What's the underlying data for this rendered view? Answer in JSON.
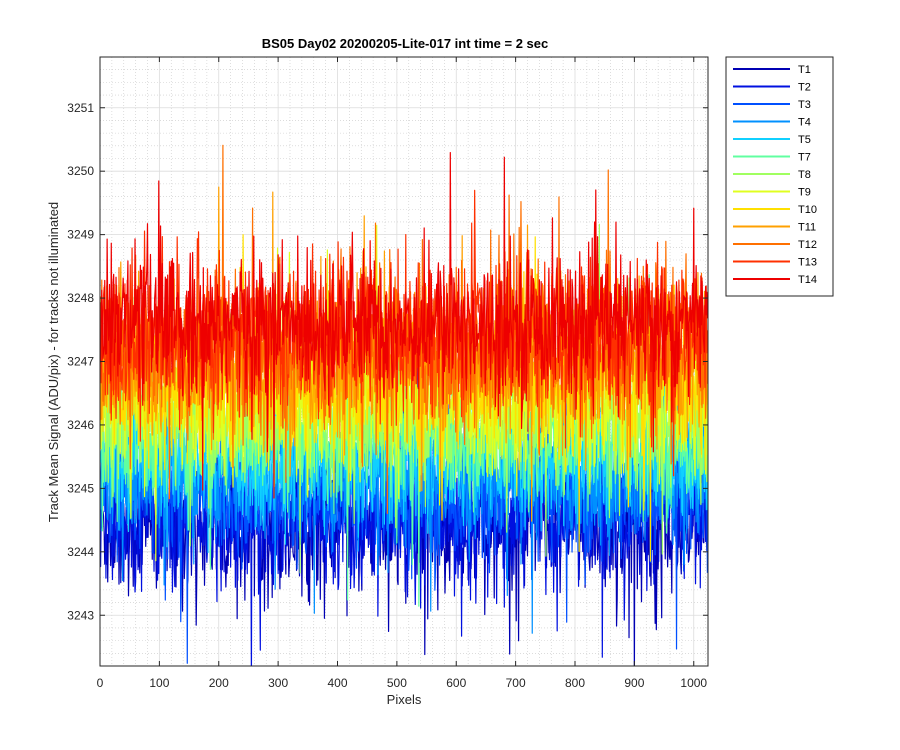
{
  "chart_data": {
    "type": "line",
    "title": "BS05 Day02 20200205-Lite-017 int time = 2 sec",
    "xlabel": "Pixels",
    "ylabel": "Track Mean Signal (ADU/pix) - for tracks not illuminated",
    "xlim": [
      0,
      1024
    ],
    "ylim": [
      3242.2,
      3251.8
    ],
    "xticks": [
      0,
      100,
      200,
      300,
      400,
      500,
      600,
      700,
      800,
      900,
      1000
    ],
    "yticks": [
      3243,
      3244,
      3245,
      3246,
      3247,
      3248,
      3249,
      3250,
      3251
    ],
    "grid": true,
    "minor_grid": true,
    "legend_position": "outside-top-right",
    "x_points": 1024,
    "series": [
      {
        "name": "T1",
        "color": "#0000b3",
        "mean": 3244.4,
        "spread": 0.55
      },
      {
        "name": "T2",
        "color": "#0010e0",
        "mean": 3244.6,
        "spread": 0.55
      },
      {
        "name": "T3",
        "color": "#0050ff",
        "mean": 3244.9,
        "spread": 0.5
      },
      {
        "name": "T4",
        "color": "#0090ff",
        "mean": 3245.2,
        "spread": 0.5
      },
      {
        "name": "T5",
        "color": "#10d0ff",
        "mean": 3245.5,
        "spread": 0.5
      },
      {
        "name": "T7",
        "color": "#60ffa0",
        "mean": 3245.8,
        "spread": 0.5
      },
      {
        "name": "T8",
        "color": "#a0ff60",
        "mean": 3246.1,
        "spread": 0.5
      },
      {
        "name": "T9",
        "color": "#e0ff20",
        "mean": 3246.4,
        "spread": 0.55
      },
      {
        "name": "T10",
        "color": "#ffe000",
        "mean": 3246.7,
        "spread": 0.6
      },
      {
        "name": "T11",
        "color": "#ffa000",
        "mean": 3247.0,
        "spread": 0.6
      },
      {
        "name": "T12",
        "color": "#ff7000",
        "mean": 3247.2,
        "spread": 0.6
      },
      {
        "name": "T13",
        "color": "#ff3000",
        "mean": 3247.4,
        "spread": 0.6
      },
      {
        "name": "T14",
        "color": "#ee0000",
        "mean": 3247.6,
        "spread": 0.55
      }
    ]
  }
}
